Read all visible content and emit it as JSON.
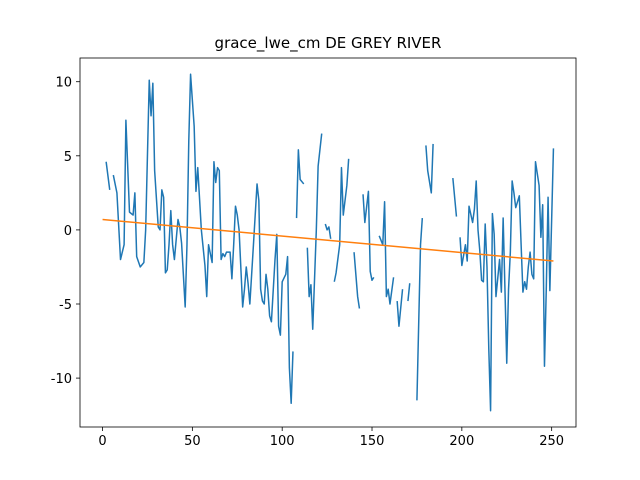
{
  "chart_data": {
    "type": "line",
    "title": "grace_lwe_cm DE GREY RIVER",
    "xlim": [
      -12.55,
      263.55
    ],
    "ylim": [
      -13.3,
      11.6
    ],
    "xticks": [
      0,
      50,
      100,
      150,
      200,
      250
    ],
    "yticks": [
      -10,
      -5,
      0,
      5,
      10
    ],
    "grid": false,
    "series": [
      {
        "color": "#1f77b4",
        "x": [
          2,
          4,
          5,
          6,
          8,
          10,
          12,
          13,
          15,
          17,
          18,
          19,
          21,
          23,
          24,
          26,
          27,
          28,
          29,
          31,
          32,
          33,
          34,
          35,
          36,
          37,
          38,
          39,
          40,
          42,
          43,
          44,
          46,
          47,
          48,
          49,
          51,
          52,
          53,
          55,
          57,
          58,
          59,
          61,
          62,
          63,
          64,
          65,
          66,
          67,
          68,
          69,
          71,
          72,
          73,
          74,
          75,
          76,
          78,
          79,
          80,
          81,
          82,
          84,
          86,
          87,
          88,
          89,
          90,
          91,
          92,
          93,
          94,
          96,
          97,
          98,
          99,
          100,
          102,
          103,
          104,
          105,
          106,
          107,
          108,
          109,
          110,
          112,
          113,
          114,
          115,
          116,
          117,
          119,
          120,
          122,
          123,
          124,
          125,
          126,
          127,
          128,
          129,
          130,
          132,
          133,
          134,
          136,
          137,
          138,
          140,
          142,
          143,
          144,
          145,
          146,
          148,
          149,
          150,
          151,
          152,
          154,
          156,
          157,
          158,
          159,
          160,
          162,
          163,
          164,
          165,
          167,
          168,
          170,
          171,
          174,
          175,
          177,
          178,
          179,
          180,
          181,
          183,
          184,
          190,
          195,
          197,
          198,
          199,
          200,
          202,
          203,
          204,
          206,
          207,
          208,
          209,
          210,
          211,
          212,
          213,
          214,
          215,
          216,
          217,
          218,
          219,
          221,
          222,
          223,
          224,
          225,
          226,
          227,
          228,
          229,
          230,
          232,
          233,
          234,
          235,
          236,
          237,
          238,
          239,
          240,
          241,
          243,
          244,
          245,
          246,
          247,
          248,
          249,
          251
        ],
        "values": [
          4.6,
          2.7,
          null,
          3.7,
          2.5,
          -2.0,
          -1,
          7.4,
          1.2,
          1,
          2.5,
          -1.8,
          -2.5,
          -2.2,
          0,
          10.1,
          7.7,
          9.9,
          4,
          0.2,
          0,
          2.7,
          2.2,
          -2.9,
          -2.7,
          -1,
          1.3,
          -1,
          -2,
          0.7,
          0.2,
          -0.9,
          -5.2,
          -1,
          6,
          10.5,
          7,
          2.6,
          4.2,
          0,
          -2.4,
          -4.5,
          -1,
          -2.2,
          4.6,
          3.2,
          4.2,
          4,
          -2,
          -1.6,
          -1.8,
          -1.5,
          -1.5,
          -3.3,
          -1,
          1.6,
          1,
          0,
          -5.2,
          -4,
          -2.5,
          -3.6,
          -5,
          -1,
          3.1,
          2,
          -4,
          -4.8,
          -5,
          -3,
          -4,
          -5.8,
          -6.2,
          -2,
          -0.3,
          -6.5,
          -7.1,
          -3.5,
          -3,
          -1.8,
          -9.3,
          -11.7,
          -8.2,
          null,
          0.8,
          5.4,
          3.4,
          3.1,
          null,
          -1.2,
          -4.5,
          -3.7,
          -6.7,
          0,
          4.3,
          6.5,
          null,
          0.4,
          0,
          0.2,
          -0.6,
          null,
          -3.5,
          -2.9,
          -1,
          4.2,
          1,
          3,
          4.8,
          null,
          -1.5,
          -4.5,
          -5.3,
          null,
          2.4,
          0.5,
          2.6,
          -2.8,
          -3.4,
          -3.2,
          null,
          -0.4,
          -1,
          1.9,
          -4.5,
          -4,
          -5,
          -3.2,
          null,
          -4.8,
          -6.5,
          -4,
          null,
          -4.8,
          -3.6,
          null,
          -11.5,
          -1,
          0.8,
          null,
          5.7,
          4,
          2.5,
          5.8,
          null,
          3.5,
          0.9,
          null,
          -0.5,
          -2.4,
          -1,
          -2.1,
          1.6,
          0.5,
          1.4,
          3.3,
          0,
          -1.4,
          -3.4,
          -3.5,
          0.4,
          -2.5,
          -8,
          -12.2,
          1.1,
          -0.3,
          -4.5,
          -2,
          -4.2,
          0.8,
          -4,
          -9,
          -4,
          -1.5,
          3.3,
          2.5,
          1.5,
          2.3,
          -1,
          -4.2,
          -3.5,
          -4,
          -2.5,
          -1.5,
          -3,
          -3.3,
          4.6,
          3,
          -0.5,
          1.7,
          -9.2,
          -4,
          2.2,
          -4.1,
          5.5
        ]
      },
      {
        "color": "#ff7f0e",
        "x": [
          0,
          251
        ],
        "values": [
          0.7,
          -2.1
        ]
      }
    ]
  }
}
